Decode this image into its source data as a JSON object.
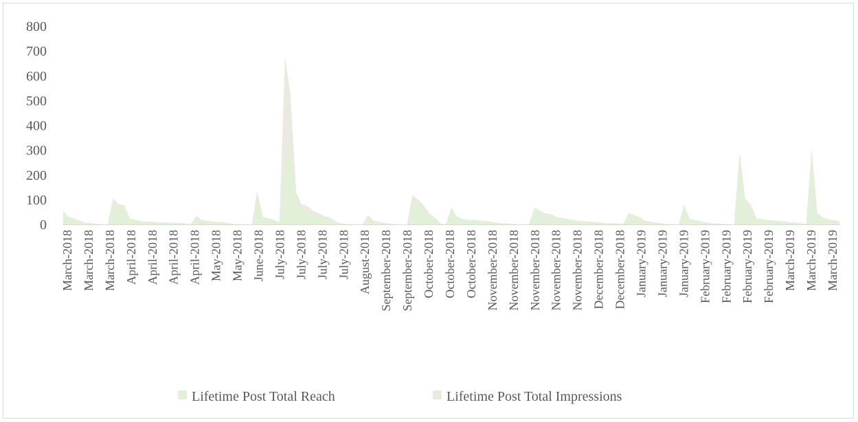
{
  "chart_data": {
    "type": "area",
    "title": "",
    "xlabel": "",
    "ylabel": "",
    "ylim": [
      0,
      800
    ],
    "yticks": [
      0,
      100,
      200,
      300,
      400,
      500,
      600,
      700,
      800
    ],
    "grid": false,
    "legend_position": "bottom",
    "x_tick_labels": [
      "March-2018",
      "March-2018",
      "March-2018",
      "April-2018",
      "April-2018",
      "April-2018",
      "April-2018",
      "May-2018",
      "May-2018",
      "June-2018",
      "July-2018",
      "July-2018",
      "July-2018",
      "July-2018",
      "August-2018",
      "September-2018",
      "September-2018",
      "October-2018",
      "October-2018",
      "October-2018",
      "November-2018",
      "November-2018",
      "November-2018",
      "November-2018",
      "November-2018",
      "December-2018",
      "December-2018",
      "January-2019",
      "January-2019",
      "January-2019",
      "February-2019",
      "February-2019",
      "February-2019",
      "February-2019",
      "March-2019",
      "March-2019",
      "March-2019"
    ],
    "x_count": 141,
    "series": [
      {
        "name": "Lifetime Post Total Reach",
        "color": "#e2f0d9",
        "points": [
          [
            0,
            50
          ],
          [
            1,
            28
          ],
          [
            2,
            22
          ],
          [
            3,
            14
          ],
          [
            4,
            6
          ],
          [
            5,
            4
          ],
          [
            6,
            2
          ],
          [
            7,
            0
          ],
          [
            8,
            0
          ],
          [
            9,
            95
          ],
          [
            10,
            75
          ],
          [
            11,
            72
          ],
          [
            12,
            22
          ],
          [
            13,
            18
          ],
          [
            14,
            12
          ],
          [
            15,
            10
          ],
          [
            16,
            9
          ],
          [
            17,
            8
          ],
          [
            18,
            6
          ],
          [
            19,
            6
          ],
          [
            20,
            6
          ],
          [
            21,
            5
          ],
          [
            22,
            4
          ],
          [
            23,
            0
          ],
          [
            24,
            30
          ],
          [
            25,
            15
          ],
          [
            26,
            12
          ],
          [
            27,
            10
          ],
          [
            28,
            9
          ],
          [
            29,
            8
          ],
          [
            30,
            4
          ],
          [
            31,
            2
          ],
          [
            32,
            0
          ],
          [
            33,
            0
          ],
          [
            34,
            0
          ],
          [
            35,
            125
          ],
          [
            36,
            25
          ],
          [
            37,
            22
          ],
          [
            38,
            15
          ],
          [
            39,
            8
          ],
          [
            40,
            270
          ],
          [
            41,
            270
          ],
          [
            42,
            110
          ],
          [
            43,
            60
          ],
          [
            44,
            55
          ],
          [
            45,
            45
          ],
          [
            46,
            35
          ],
          [
            47,
            25
          ],
          [
            48,
            20
          ],
          [
            49,
            12
          ],
          [
            50,
            4
          ],
          [
            51,
            2
          ],
          [
            52,
            0
          ],
          [
            53,
            0
          ],
          [
            54,
            0
          ],
          [
            55,
            32
          ],
          [
            56,
            12
          ],
          [
            57,
            8
          ],
          [
            58,
            5
          ],
          [
            59,
            3
          ],
          [
            60,
            0
          ],
          [
            61,
            0
          ],
          [
            62,
            0
          ],
          [
            63,
            105
          ],
          [
            64,
            90
          ],
          [
            65,
            70
          ],
          [
            66,
            40
          ],
          [
            67,
            25
          ],
          [
            68,
            5
          ],
          [
            69,
            0
          ],
          [
            70,
            62
          ],
          [
            71,
            30
          ],
          [
            72,
            20
          ],
          [
            73,
            15
          ],
          [
            74,
            15
          ],
          [
            75,
            14
          ],
          [
            76,
            12
          ],
          [
            77,
            10
          ],
          [
            78,
            6
          ],
          [
            79,
            5
          ],
          [
            80,
            4
          ],
          [
            81,
            2
          ],
          [
            82,
            0
          ],
          [
            83,
            0
          ],
          [
            84,
            0
          ],
          [
            85,
            62
          ],
          [
            86,
            50
          ],
          [
            87,
            40
          ],
          [
            88,
            38
          ],
          [
            89,
            28
          ],
          [
            90,
            22
          ],
          [
            91,
            20
          ],
          [
            92,
            15
          ],
          [
            93,
            12
          ],
          [
            94,
            12
          ],
          [
            95,
            10
          ],
          [
            96,
            8
          ],
          [
            97,
            6
          ],
          [
            98,
            5
          ],
          [
            99,
            4
          ],
          [
            100,
            3
          ],
          [
            101,
            2
          ],
          [
            102,
            38
          ],
          [
            103,
            32
          ],
          [
            104,
            25
          ],
          [
            105,
            12
          ],
          [
            106,
            10
          ],
          [
            107,
            6
          ],
          [
            108,
            4
          ],
          [
            109,
            2
          ],
          [
            110,
            0
          ],
          [
            111,
            0
          ],
          [
            112,
            72
          ],
          [
            113,
            18
          ],
          [
            114,
            15
          ],
          [
            115,
            10
          ],
          [
            116,
            6
          ],
          [
            117,
            4
          ],
          [
            118,
            3
          ],
          [
            119,
            2
          ],
          [
            120,
            0
          ],
          [
            121,
            0
          ],
          [
            122,
            285
          ],
          [
            123,
            95
          ],
          [
            124,
            75
          ],
          [
            125,
            22
          ],
          [
            126,
            20
          ],
          [
            127,
            15
          ],
          [
            128,
            14
          ],
          [
            129,
            12
          ],
          [
            130,
            10
          ],
          [
            131,
            8
          ],
          [
            132,
            6
          ],
          [
            133,
            4
          ],
          [
            134,
            2
          ],
          [
            135,
            300
          ],
          [
            136,
            40
          ],
          [
            137,
            25
          ],
          [
            138,
            18
          ],
          [
            139,
            15
          ],
          [
            140,
            12
          ]
        ]
      },
      {
        "name": "Lifetime Post Total Impressions",
        "color": "#ebe9e0",
        "points": [
          [
            0,
            55
          ],
          [
            1,
            30
          ],
          [
            2,
            24
          ],
          [
            3,
            15
          ],
          [
            4,
            7
          ],
          [
            5,
            5
          ],
          [
            6,
            2
          ],
          [
            7,
            0
          ],
          [
            8,
            0
          ],
          [
            9,
            105
          ],
          [
            10,
            80
          ],
          [
            11,
            78
          ],
          [
            12,
            24
          ],
          [
            13,
            19
          ],
          [
            14,
            13
          ],
          [
            15,
            11
          ],
          [
            16,
            10
          ],
          [
            17,
            9
          ],
          [
            18,
            7
          ],
          [
            19,
            7
          ],
          [
            20,
            6
          ],
          [
            21,
            5
          ],
          [
            22,
            4
          ],
          [
            23,
            0
          ],
          [
            24,
            35
          ],
          [
            25,
            18
          ],
          [
            26,
            14
          ],
          [
            27,
            12
          ],
          [
            28,
            10
          ],
          [
            29,
            9
          ],
          [
            30,
            4
          ],
          [
            31,
            2
          ],
          [
            32,
            0
          ],
          [
            33,
            0
          ],
          [
            34,
            0
          ],
          [
            35,
            135
          ],
          [
            36,
            30
          ],
          [
            37,
            25
          ],
          [
            38,
            18
          ],
          [
            39,
            8
          ],
          [
            40,
            680
          ],
          [
            41,
            520
          ],
          [
            42,
            130
          ],
          [
            43,
            80
          ],
          [
            44,
            75
          ],
          [
            45,
            55
          ],
          [
            46,
            45
          ],
          [
            47,
            35
          ],
          [
            48,
            28
          ],
          [
            49,
            15
          ],
          [
            50,
            5
          ],
          [
            51,
            2
          ],
          [
            52,
            0
          ],
          [
            53,
            0
          ],
          [
            54,
            0
          ],
          [
            55,
            38
          ],
          [
            56,
            15
          ],
          [
            57,
            10
          ],
          [
            58,
            6
          ],
          [
            59,
            3
          ],
          [
            60,
            0
          ],
          [
            61,
            0
          ],
          [
            62,
            0
          ],
          [
            63,
            118
          ],
          [
            64,
            100
          ],
          [
            65,
            78
          ],
          [
            66,
            45
          ],
          [
            67,
            28
          ],
          [
            68,
            5
          ],
          [
            69,
            0
          ],
          [
            70,
            68
          ],
          [
            71,
            32
          ],
          [
            72,
            22
          ],
          [
            73,
            18
          ],
          [
            74,
            18
          ],
          [
            75,
            16
          ],
          [
            76,
            14
          ],
          [
            77,
            12
          ],
          [
            78,
            7
          ],
          [
            79,
            5
          ],
          [
            80,
            4
          ],
          [
            81,
            2
          ],
          [
            82,
            0
          ],
          [
            83,
            0
          ],
          [
            84,
            0
          ],
          [
            85,
            68
          ],
          [
            86,
            55
          ],
          [
            87,
            45
          ],
          [
            88,
            42
          ],
          [
            89,
            30
          ],
          [
            90,
            25
          ],
          [
            91,
            22
          ],
          [
            92,
            18
          ],
          [
            93,
            14
          ],
          [
            94,
            13
          ],
          [
            95,
            11
          ],
          [
            96,
            9
          ],
          [
            97,
            7
          ],
          [
            98,
            5
          ],
          [
            99,
            4
          ],
          [
            100,
            3
          ],
          [
            101,
            2
          ],
          [
            102,
            45
          ],
          [
            103,
            38
          ],
          [
            104,
            28
          ],
          [
            105,
            14
          ],
          [
            106,
            11
          ],
          [
            107,
            7
          ],
          [
            108,
            4
          ],
          [
            109,
            2
          ],
          [
            110,
            0
          ],
          [
            111,
            0
          ],
          [
            112,
            80
          ],
          [
            113,
            22
          ],
          [
            114,
            18
          ],
          [
            115,
            12
          ],
          [
            116,
            7
          ],
          [
            117,
            5
          ],
          [
            118,
            3
          ],
          [
            119,
            2
          ],
          [
            120,
            0
          ],
          [
            121,
            0
          ],
          [
            122,
            290
          ],
          [
            123,
            105
          ],
          [
            124,
            80
          ],
          [
            125,
            25
          ],
          [
            126,
            22
          ],
          [
            127,
            18
          ],
          [
            128,
            16
          ],
          [
            129,
            14
          ],
          [
            130,
            12
          ],
          [
            131,
            9
          ],
          [
            132,
            7
          ],
          [
            133,
            5
          ],
          [
            134,
            2
          ],
          [
            135,
            305
          ],
          [
            136,
            45
          ],
          [
            137,
            28
          ],
          [
            138,
            20
          ],
          [
            139,
            17
          ],
          [
            140,
            14
          ]
        ]
      }
    ]
  }
}
